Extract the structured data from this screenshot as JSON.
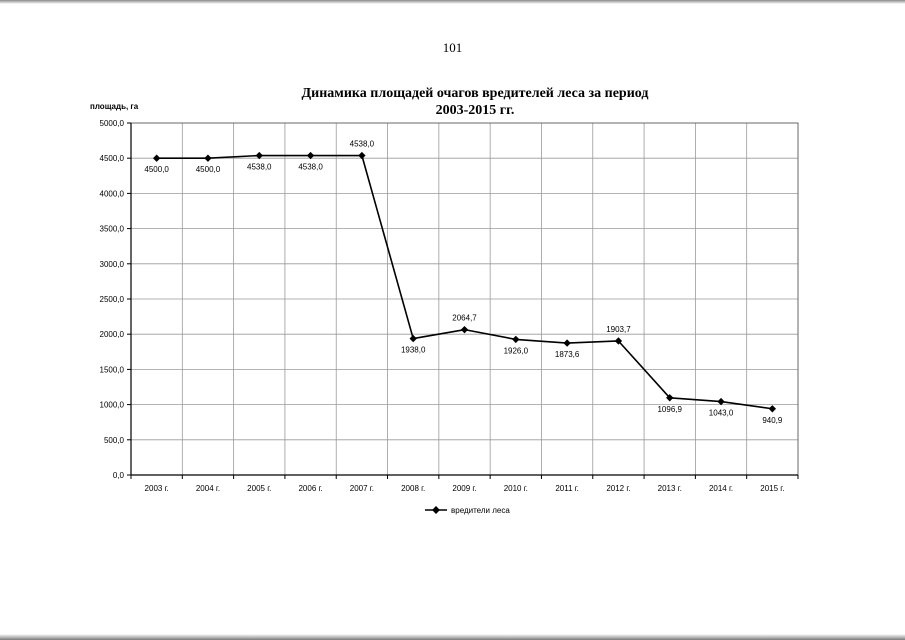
{
  "page": {
    "number": "101"
  },
  "chart_data": {
    "type": "line",
    "title_line1": "Динамика площадей очагов вредителей леса за период",
    "title_line2": "2003-2015 гг.",
    "ylabel": "площадь, га",
    "xlabel": "",
    "ylim": [
      0,
      5000
    ],
    "ytick_values": [
      0,
      500,
      1000,
      1500,
      2000,
      2500,
      3000,
      3500,
      4000,
      4500,
      5000
    ],
    "ytick_labels": [
      "0,0",
      "500,0",
      "1000,0",
      "1500,0",
      "2000,0",
      "2500,0",
      "3000,0",
      "3500,0",
      "4000,0",
      "4500,0",
      "5000,0"
    ],
    "categories": [
      "2003 г.",
      "2004 г.",
      "2005 г.",
      "2006 г.",
      "2007 г.",
      "2008 г.",
      "2009 г.",
      "2010 г.",
      "2011 г.",
      "2012 г.",
      "2013 г.",
      "2014 г.",
      "2015 г."
    ],
    "grid": true,
    "legend": "bottom-center",
    "series": [
      {
        "name": "вредители леса",
        "color": "#000000",
        "values": [
          4500.0,
          4500.0,
          4538.0,
          4538.0,
          4538.0,
          1938.0,
          2064.7,
          1926.0,
          1873.6,
          1903.7,
          1096.9,
          1043.0,
          940.9
        ],
        "labels": [
          "4500,0",
          "4500,0",
          "4538,0",
          "4538,0",
          "4538,0",
          "1938,0",
          "2064,7",
          "1926,0",
          "1873,6",
          "1903,7",
          "1096,9",
          "1043,0",
          "940,9"
        ],
        "label_positions": [
          "below",
          "below",
          "below",
          "below",
          "above",
          "below",
          "above",
          "below",
          "below",
          "above",
          "below",
          "below",
          "below"
        ]
      }
    ]
  }
}
